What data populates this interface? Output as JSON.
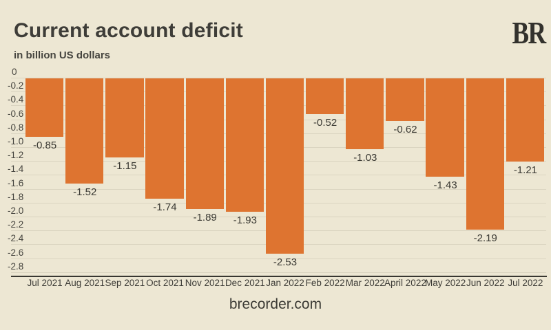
{
  "header": {
    "title": "Current account deficit",
    "subtitle": "in billion US dollars",
    "logo": "BR"
  },
  "footer": {
    "source": "brecorder.com"
  },
  "colors": {
    "background": "#EDE7D3",
    "bar": "#DE7430",
    "gridline": "#DAD4C0",
    "text": "#3E3D38",
    "axis_line": "#383731"
  },
  "chart_data": {
    "type": "bar",
    "title": "Current account deficit",
    "subtitle": "in billion US dollars",
    "xlabel": "",
    "ylabel": "in billion US dollars",
    "categories": [
      "Jul 2021",
      "Aug 2021",
      "Sep 2021",
      "Oct 2021",
      "Nov 2021",
      "Dec 2021",
      "Jan 2022",
      "Feb 2022",
      "Mar 2022",
      "April 2022",
      "May 2022",
      "Jun 2022",
      "Jul 2022"
    ],
    "values": [
      -0.85,
      -1.52,
      -1.15,
      -1.74,
      -1.89,
      -1.93,
      -2.53,
      -0.52,
      -1.03,
      -0.62,
      -1.43,
      -2.19,
      -1.21
    ],
    "bar_labels": [
      "-0.85",
      "-1.52",
      "-1.15",
      "-1.74",
      "-1.89",
      "-1.93",
      "-2.53",
      "-0.52",
      "-1.03",
      "-0.62",
      "-1.43",
      "-2.19",
      "-1.21"
    ],
    "yticks": [
      0,
      -0.2,
      -0.4,
      -0.6,
      -0.8,
      -1.0,
      -1.2,
      -1.4,
      -1.6,
      -1.8,
      -2.0,
      -2.2,
      -2.4,
      -2.6,
      -2.8
    ],
    "ylim": [
      -2.9,
      0
    ],
    "grid": true,
    "legend": null
  }
}
